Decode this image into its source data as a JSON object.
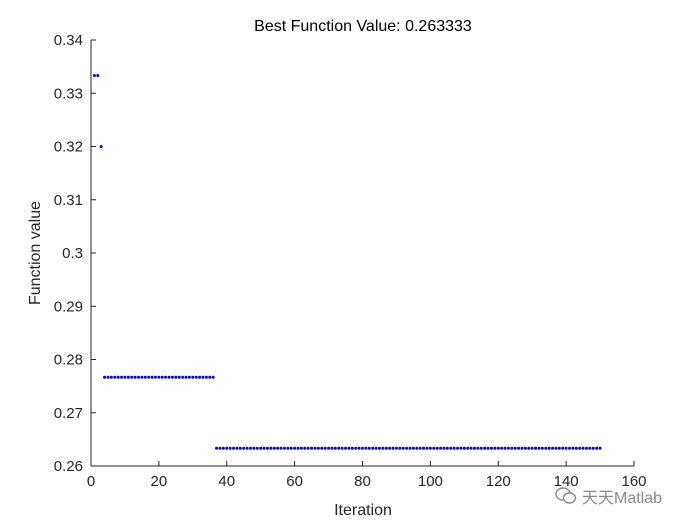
{
  "chart_data": {
    "type": "scatter",
    "title": "Best Function Value: 0.263333",
    "xlabel": "Iteration",
    "ylabel": "Function value",
    "xlim": [
      0,
      160
    ],
    "ylim": [
      0.26,
      0.34
    ],
    "xticks": [
      "0",
      "20",
      "40",
      "60",
      "80",
      "100",
      "120",
      "140",
      "160"
    ],
    "yticks": [
      "0.26",
      "0.27",
      "0.28",
      "0.29",
      "0.3",
      "0.31",
      "0.32",
      "0.33",
      "0.34"
    ],
    "marker_color": "#0000ff",
    "segments": [
      {
        "x_start": 1,
        "x_end": 2,
        "y": 0.333333
      },
      {
        "x_start": 3,
        "x_end": 3,
        "y": 0.32
      },
      {
        "x_start": 4,
        "x_end": 36,
        "y": 0.276667
      },
      {
        "x_start": 37,
        "x_end": 150,
        "y": 0.263333
      }
    ]
  },
  "watermark": {
    "text": "天天Matlab",
    "icon": "wechat-icon"
  }
}
